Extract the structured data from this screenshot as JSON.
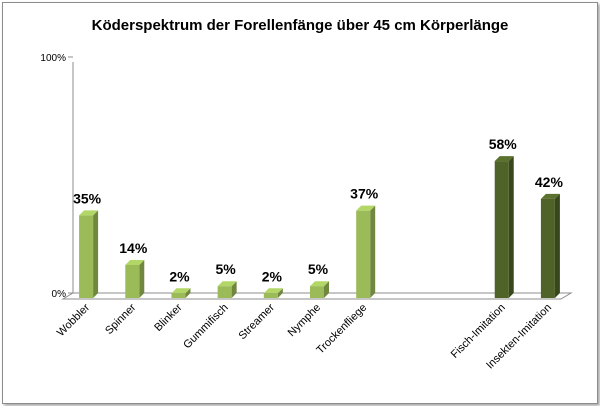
{
  "chart_data": {
    "type": "bar",
    "title": "Köderspektrum der Forellenfänge über 45 cm Körperlänge",
    "xlabel": "",
    "ylabel": "",
    "ylim": [
      0,
      100
    ],
    "y_ticks": [
      "0%",
      "100%"
    ],
    "grid": false,
    "legend": "none",
    "categories": [
      "Wobbler",
      "Spinner",
      "Blinker",
      "Gummifisch",
      "Streamer",
      "Nymphe",
      "Trockenfliege",
      "",
      "",
      "Fisch-Imitation",
      "Insekten-Imitation"
    ],
    "values": [
      35,
      14,
      2,
      5,
      2,
      5,
      37,
      null,
      null,
      58,
      42
    ],
    "data_labels": [
      "35%",
      "14%",
      "2%",
      "5%",
      "2%",
      "5%",
      "37%",
      "",
      "",
      "58%",
      "42%"
    ],
    "bar_colors": [
      "#9bbb59",
      "#9bbb59",
      "#9bbb59",
      "#9bbb59",
      "#9bbb59",
      "#9bbb59",
      "#9bbb59",
      "",
      "",
      "#4f6228",
      "#4f6228"
    ]
  }
}
